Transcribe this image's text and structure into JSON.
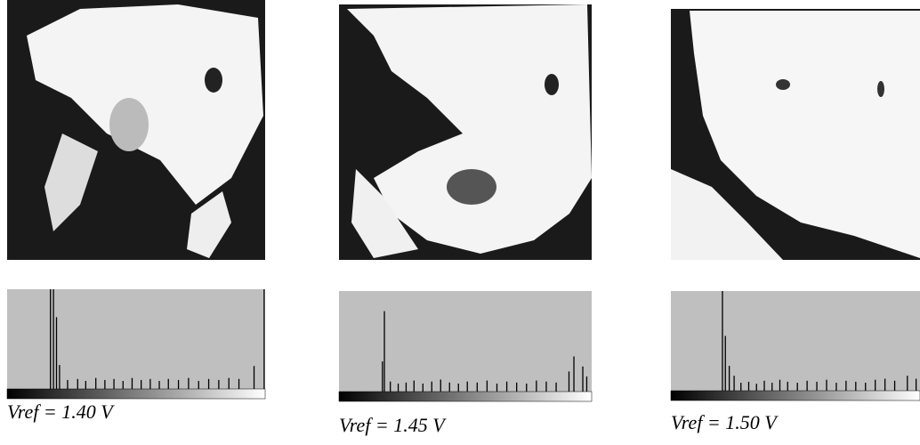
{
  "panels": [
    {
      "label": "Vref = 1.40 V",
      "histogram": {
        "x": [
          43,
          46,
          49,
          52,
          60,
          70,
          78,
          88,
          97,
          106,
          115,
          124,
          133,
          142,
          151,
          160,
          170,
          180,
          190,
          200,
          210,
          220,
          230,
          245,
          255
        ],
        "values": [
          100,
          100,
          72,
          24,
          9,
          10,
          8,
          11,
          9,
          10,
          8,
          11,
          9,
          10,
          8,
          10,
          9,
          11,
          8,
          10,
          9,
          11,
          10,
          23,
          100
        ]
      }
    },
    {
      "label": "Vref = 1.45 V",
      "histogram": {
        "x": [
          44,
          46,
          52,
          60,
          68,
          76,
          85,
          94,
          103,
          112,
          121,
          130,
          140,
          150,
          160,
          170,
          180,
          190,
          200,
          210,
          220,
          233,
          238,
          247,
          251
        ],
        "values": [
          30,
          80,
          10,
          8,
          9,
          11,
          8,
          10,
          12,
          9,
          8,
          10,
          9,
          11,
          8,
          10,
          9,
          8,
          11,
          10,
          9,
          20,
          35,
          25,
          15
        ]
      }
    },
    {
      "label": "Vref = 1.50 V",
      "histogram": {
        "x": [
          53,
          56,
          60,
          65,
          72,
          80,
          88,
          96,
          104,
          112,
          120,
          130,
          140,
          150,
          160,
          170,
          180,
          190,
          200,
          210,
          220,
          230,
          243,
          252
        ],
        "values": [
          100,
          55,
          25,
          15,
          8,
          9,
          7,
          10,
          8,
          11,
          9,
          8,
          10,
          9,
          11,
          8,
          10,
          9,
          8,
          11,
          12,
          10,
          15,
          12
        ]
      }
    }
  ]
}
